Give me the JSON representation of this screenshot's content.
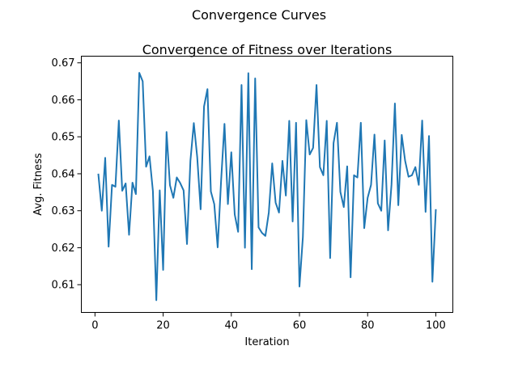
{
  "chart_data": {
    "type": "line",
    "suptitle": "Convergence Curves",
    "title": "Convergence of Fitness over Iterations",
    "xlabel": "Iteration",
    "ylabel": "Avg. Fitness",
    "xlim": [
      -4,
      105
    ],
    "ylim": [
      0.6025,
      0.6718
    ],
    "xticks": [
      0,
      20,
      40,
      60,
      80,
      100
    ],
    "yticks": [
      0.61,
      0.62,
      0.63,
      0.64,
      0.65,
      0.66,
      0.67
    ],
    "ytick_labels": [
      "0.61",
      "0.62",
      "0.63",
      "0.64",
      "0.65",
      "0.66",
      "0.67"
    ],
    "grid": false,
    "line_color": "#1f77b4",
    "series": [
      {
        "x": [
          1,
          2,
          3,
          4,
          5,
          6,
          7,
          8,
          9,
          10,
          11,
          12,
          13,
          14,
          15,
          16,
          17,
          18,
          19,
          20,
          21,
          22,
          23,
          24,
          25,
          26,
          27,
          28,
          29,
          30,
          31,
          32,
          33,
          34,
          35,
          36,
          37,
          38,
          39,
          40,
          41,
          42,
          43,
          44,
          45,
          46,
          47,
          48,
          49,
          50,
          51,
          52,
          53,
          54,
          55,
          56,
          57,
          58,
          59,
          60,
          61,
          62,
          63,
          64,
          65,
          66,
          67,
          68,
          69,
          70,
          71,
          72,
          73,
          74,
          75,
          76,
          77,
          78,
          79,
          80,
          81,
          82,
          83,
          84,
          85,
          86,
          87,
          88,
          89,
          90,
          91,
          92,
          93,
          94,
          95,
          96,
          97,
          98,
          99,
          100
        ],
        "values": [
          0.6398,
          0.63,
          0.6443,
          0.6203,
          0.637,
          0.6365,
          0.6544,
          0.6354,
          0.6374,
          0.6235,
          0.6376,
          0.6345,
          0.6673,
          0.665,
          0.6419,
          0.6447,
          0.6353,
          0.6058,
          0.6355,
          0.614,
          0.6513,
          0.6369,
          0.6335,
          0.639,
          0.6375,
          0.6355,
          0.621,
          0.6435,
          0.6537,
          0.6445,
          0.6304,
          0.6582,
          0.6629,
          0.6352,
          0.6318,
          0.6201,
          0.638,
          0.6535,
          0.6318,
          0.6458,
          0.629,
          0.6243,
          0.664,
          0.62,
          0.6672,
          0.6142,
          0.6658,
          0.6255,
          0.624,
          0.6232,
          0.6295,
          0.6428,
          0.6322,
          0.6295,
          0.6435,
          0.6341,
          0.6543,
          0.6271,
          0.6538,
          0.6095,
          0.6229,
          0.6545,
          0.6452,
          0.647,
          0.664,
          0.6418,
          0.6396,
          0.6543,
          0.6172,
          0.6483,
          0.6538,
          0.6351,
          0.631,
          0.642,
          0.612,
          0.6396,
          0.639,
          0.6538,
          0.6253,
          0.6335,
          0.637,
          0.6506,
          0.632,
          0.63,
          0.649,
          0.6247,
          0.637,
          0.659,
          0.6315,
          0.6505,
          0.6435,
          0.6392,
          0.6396,
          0.6418,
          0.637,
          0.6544,
          0.6297,
          0.6502,
          0.6108,
          0.6302
        ]
      }
    ]
  }
}
